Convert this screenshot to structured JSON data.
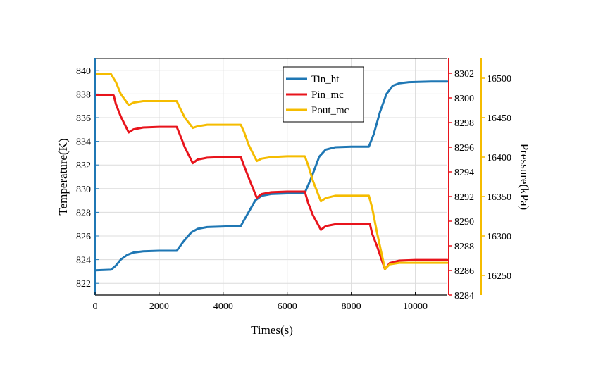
{
  "chart_data": {
    "type": "line",
    "xlabel": "Times(s)",
    "xlim": [
      0,
      11000
    ],
    "xticks": [
      0,
      2000,
      4000,
      6000,
      8000,
      10000
    ],
    "legend_position": "top-center",
    "grid": true,
    "axes": {
      "left": {
        "label": "Temperature(K)",
        "lim": [
          821,
          841
        ],
        "ticks": [
          822,
          824,
          826,
          828,
          830,
          832,
          834,
          836,
          838,
          840
        ],
        "color": "#1f77b4"
      },
      "right1": {
        "label": "",
        "lim": [
          8284,
          8303.2
        ],
        "ticks": [
          8284,
          8286,
          8288,
          8290,
          8292,
          8294,
          8296,
          8298,
          8300,
          8302
        ],
        "color": "#e8141c"
      },
      "right2": {
        "label": "Pressure(kPa)",
        "lim": [
          16225,
          16525
        ],
        "ticks": [
          16250,
          16300,
          16350,
          16400,
          16450,
          16500
        ],
        "color": "#f5bc00"
      }
    },
    "series": [
      {
        "name": "Tin_ht",
        "axis": "left",
        "color": "#1f77b4",
        "x": [
          0,
          500,
          650,
          800,
          1000,
          1200,
          1500,
          2000,
          2550,
          2750,
          3000,
          3200,
          3500,
          4000,
          4550,
          4750,
          5000,
          5200,
          5500,
          6000,
          6550,
          6750,
          7000,
          7200,
          7500,
          8000,
          8550,
          8700,
          8900,
          9100,
          9300,
          9500,
          9800,
          10500,
          11000
        ],
        "y": [
          823.1,
          823.15,
          823.5,
          824.0,
          824.4,
          824.6,
          824.7,
          824.75,
          824.75,
          825.5,
          826.3,
          826.6,
          826.75,
          826.8,
          826.85,
          827.8,
          829.0,
          829.4,
          829.55,
          829.6,
          829.65,
          830.9,
          832.7,
          833.3,
          833.5,
          833.55,
          833.55,
          834.6,
          836.5,
          838.0,
          838.7,
          838.9,
          839.0,
          839.05,
          839.05
        ]
      },
      {
        "name": "Pin_mc",
        "axis": "right1",
        "color": "#e8141c",
        "x": [
          0,
          580,
          650,
          800,
          1050,
          1200,
          1500,
          2000,
          2550,
          2650,
          2800,
          3050,
          3200,
          3500,
          4000,
          4550,
          4650,
          4800,
          5050,
          5200,
          5500,
          6000,
          6550,
          6650,
          6800,
          7050,
          7200,
          7500,
          8000,
          8580,
          8650,
          8800,
          9050,
          9200,
          9500,
          10000,
          11000
        ],
        "y": [
          8300.2,
          8300.2,
          8299.5,
          8298.5,
          8297.2,
          8297.45,
          8297.6,
          8297.65,
          8297.65,
          8297.0,
          8296.0,
          8294.7,
          8295.0,
          8295.15,
          8295.2,
          8295.2,
          8294.5,
          8293.5,
          8291.9,
          8292.2,
          8292.35,
          8292.4,
          8292.4,
          8291.5,
          8290.5,
          8289.3,
          8289.6,
          8289.75,
          8289.8,
          8289.8,
          8289.0,
          8288.0,
          8286.1,
          8286.6,
          8286.8,
          8286.85,
          8286.85
        ]
      },
      {
        "name": "Pout_mc",
        "axis": "right2",
        "color": "#f5bc00",
        "x": [
          0,
          500,
          650,
          800,
          1050,
          1200,
          1500,
          2000,
          2550,
          2650,
          2800,
          3050,
          3200,
          3500,
          4000,
          4550,
          4650,
          4800,
          5050,
          5200,
          5500,
          6000,
          6550,
          6650,
          6800,
          7050,
          7200,
          7500,
          8000,
          8550,
          8650,
          8800,
          9050,
          9200,
          9500,
          10000,
          11000
        ],
        "y": [
          16505,
          16505,
          16495,
          16480,
          16466,
          16469,
          16471,
          16471,
          16471,
          16462,
          16450,
          16437,
          16439,
          16441,
          16441,
          16441,
          16432,
          16415,
          16395,
          16398,
          16400,
          16401,
          16401,
          16390,
          16370,
          16344,
          16348,
          16351,
          16351,
          16351,
          16336,
          16305,
          16258,
          16264,
          16266,
          16266,
          16266
        ]
      }
    ]
  }
}
